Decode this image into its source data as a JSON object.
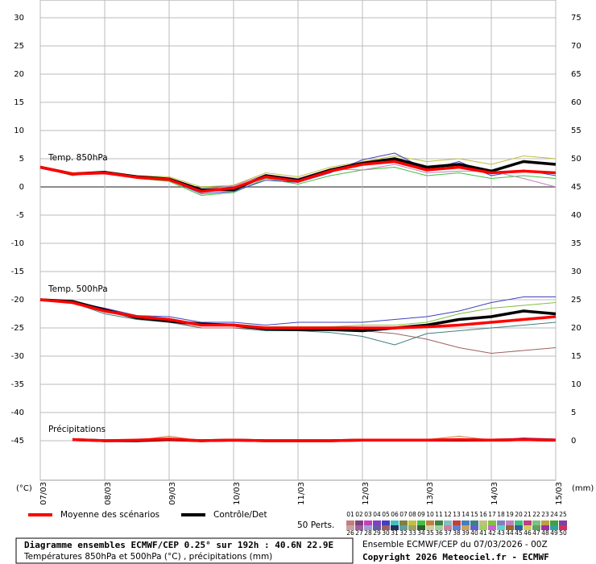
{
  "chart_data": {
    "type": "line",
    "x": [
      0,
      12,
      24,
      36,
      48,
      60,
      72,
      84,
      96,
      108,
      120,
      132,
      144,
      156,
      168,
      180,
      192
    ],
    "xlim": [
      0,
      192
    ],
    "xticks": [
      {
        "value": 0,
        "label": "07/03"
      },
      {
        "value": 24,
        "label": "08/03"
      },
      {
        "value": 48,
        "label": "09/03"
      },
      {
        "value": 72,
        "label": "10/03"
      },
      {
        "value": 96,
        "label": "11/03"
      },
      {
        "value": 120,
        "label": "12/03"
      },
      {
        "value": 144,
        "label": "13/03"
      },
      {
        "value": 168,
        "label": "14/03"
      },
      {
        "value": 192,
        "label": "15/03"
      }
    ],
    "ylim": [
      -52,
      30
    ],
    "yticks": [
      30,
      25,
      20,
      15,
      10,
      5,
      0,
      -5,
      -10,
      -15,
      -20,
      -25,
      -30,
      -35,
      -40,
      -45
    ],
    "y2lim": [
      -7,
      75
    ],
    "y2ticks": [
      75,
      70,
      65,
      60,
      55,
      50,
      45,
      40,
      35,
      30,
      25,
      20,
      15,
      10,
      5,
      0
    ],
    "y_unit": "(°C)",
    "y2_unit": "(mm)",
    "grid": true,
    "annotations": [
      "Temp. 850hPa",
      "Temp. 500hPa",
      "Précipitations"
    ],
    "legend": {
      "mean": "Moyenne des scénarios",
      "mean_color": "#ff0000",
      "control": "Contrôle/Det",
      "control_color": "#000000",
      "perts": "50 Perts."
    },
    "pert_members": [
      {
        "label": "01",
        "color": "#c08080"
      },
      {
        "label": "02",
        "color": "#804080"
      },
      {
        "label": "03",
        "color": "#c040c0"
      },
      {
        "label": "04",
        "color": "#8040c0"
      },
      {
        "label": "05",
        "color": "#4040c0"
      },
      {
        "label": "06",
        "color": "#40c0c0"
      },
      {
        "label": "07",
        "color": "#808040"
      },
      {
        "label": "08",
        "color": "#c0c040"
      },
      {
        "label": "09",
        "color": "#40c040"
      },
      {
        "label": "10",
        "color": "#c08040"
      },
      {
        "label": "11",
        "color": "#408040"
      },
      {
        "label": "12",
        "color": "#80c0c0"
      },
      {
        "label": "13",
        "color": "#c04040"
      },
      {
        "label": "14",
        "color": "#4080c0"
      },
      {
        "label": "15",
        "color": "#408080"
      },
      {
        "label": "16",
        "color": "#c0c080"
      },
      {
        "label": "17",
        "color": "#80c040"
      },
      {
        "label": "18",
        "color": "#8080c0"
      },
      {
        "label": "19",
        "color": "#c080c0"
      },
      {
        "label": "20",
        "color": "#40c080"
      },
      {
        "label": "21",
        "color": "#c04080"
      },
      {
        "label": "22",
        "color": "#80c080"
      },
      {
        "label": "23",
        "color": "#c0a040"
      },
      {
        "label": "24",
        "color": "#40a040"
      },
      {
        "label": "25",
        "color": "#8040a0"
      },
      {
        "label": "26",
        "color": "#d0a0a0"
      },
      {
        "label": "27",
        "color": "#a060a0"
      },
      {
        "label": "28",
        "color": "#a0a0d0"
      },
      {
        "label": "29",
        "color": "#6060a0"
      },
      {
        "label": "30",
        "color": "#a06060"
      },
      {
        "label": "31",
        "color": "#203060"
      },
      {
        "label": "32",
        "color": "#60a0a0"
      },
      {
        "label": "33",
        "color": "#a0a060"
      },
      {
        "label": "34",
        "color": "#306030"
      },
      {
        "label": "35",
        "color": "#d0d0a0"
      },
      {
        "label": "36",
        "color": "#a0d0a0"
      },
      {
        "label": "37",
        "color": "#d080a0"
      },
      {
        "label": "38",
        "color": "#6080d0"
      },
      {
        "label": "39",
        "color": "#d0a060"
      },
      {
        "label": "40",
        "color": "#6060d0"
      },
      {
        "label": "41",
        "color": "#a0d060"
      },
      {
        "label": "42",
        "color": "#d060d0"
      },
      {
        "label": "43",
        "color": "#60d0d0"
      },
      {
        "label": "44",
        "color": "#a06030"
      },
      {
        "label": "45",
        "color": "#3060a0"
      },
      {
        "label": "46",
        "color": "#d0d060"
      },
      {
        "label": "47",
        "color": "#60a060"
      },
      {
        "label": "48",
        "color": "#a030a0"
      },
      {
        "label": "49",
        "color": "#30a0a0"
      },
      {
        "label": "50",
        "color": "#d03060"
      }
    ],
    "series": [
      {
        "role": "pert",
        "color": "#40c040",
        "values": [
          3.5,
          2.0,
          2.8,
          1.5,
          1.0,
          -1.5,
          -1.0,
          1.5,
          0.5,
          2.0,
          3.0,
          3.5,
          2.0,
          2.5,
          1.5,
          2.0,
          1.5
        ]
      },
      {
        "role": "pert",
        "color": "#c0c040",
        "values": [
          3.5,
          2.5,
          2.6,
          2.0,
          1.8,
          0.0,
          0.3,
          2.5,
          1.8,
          3.5,
          4.5,
          5.5,
          4.5,
          5.0,
          4.0,
          5.5,
          5.0
        ]
      },
      {
        "role": "pert",
        "color": "#4040c0",
        "values": [
          3.5,
          2.2,
          2.3,
          1.6,
          1.2,
          -1.2,
          -0.8,
          1.2,
          0.8,
          2.5,
          4.8,
          6.0,
          3.0,
          4.5,
          2.0,
          3.0,
          2.0
        ]
      },
      {
        "role": "pert",
        "color": "#c080c0",
        "values": [
          3.5,
          2.4,
          2.7,
          1.9,
          1.5,
          -0.5,
          0.2,
          2.2,
          1.5,
          3.2,
          3.0,
          4.0,
          2.5,
          2.8,
          2.8,
          1.5,
          0.0
        ]
      },
      {
        "role": "control",
        "color": "#000000",
        "values": [
          3.5,
          2.3,
          2.6,
          1.8,
          1.4,
          -0.5,
          -0.5,
          2.0,
          1.2,
          3.0,
          4.2,
          5.0,
          3.5,
          4.0,
          2.8,
          4.5,
          4.0
        ]
      },
      {
        "role": "mean",
        "color": "#ff0000",
        "values": [
          3.5,
          2.3,
          2.5,
          1.7,
          1.3,
          -0.8,
          -0.2,
          1.8,
          1.0,
          2.8,
          4.0,
          4.5,
          3.0,
          3.5,
          2.5,
          2.8,
          2.5
        ]
      },
      {
        "role": "pert",
        "color": "#408080",
        "values": [
          -20,
          -20.5,
          -22.5,
          -23.5,
          -24.0,
          -25.0,
          -25.0,
          -25.5,
          -25.5,
          -25.8,
          -26.5,
          -28.0,
          -26.0,
          -25.5,
          -25.0,
          -24.5,
          -24.0
        ]
      },
      {
        "role": "pert",
        "color": "#4040c0",
        "values": [
          -20,
          -20.3,
          -21.5,
          -22.8,
          -23.0,
          -24.0,
          -24.0,
          -24.5,
          -24.0,
          -24.0,
          -24.0,
          -23.5,
          -23.0,
          -22.0,
          -20.5,
          -19.5,
          -19.5
        ]
      },
      {
        "role": "pert",
        "color": "#a06060",
        "values": [
          -20,
          -20.6,
          -22.2,
          -23.0,
          -23.8,
          -25.0,
          -25.0,
          -25.2,
          -25.5,
          -25.5,
          -25.5,
          -26.0,
          -27.0,
          -28.5,
          -29.5,
          -29.0,
          -28.5
        ]
      },
      {
        "role": "pert",
        "color": "#80c040",
        "values": [
          -20,
          -20.4,
          -21.8,
          -22.8,
          -23.3,
          -24.4,
          -24.3,
          -24.8,
          -24.8,
          -24.8,
          -24.5,
          -24.5,
          -24.0,
          -22.5,
          -21.5,
          -21.0,
          -20.5
        ]
      },
      {
        "role": "control",
        "color": "#000000",
        "values": [
          -20,
          -20.3,
          -21.8,
          -23.2,
          -23.8,
          -24.3,
          -24.5,
          -25.2,
          -25.3,
          -25.3,
          -25.5,
          -25.0,
          -24.5,
          -23.5,
          -23.0,
          -22.0,
          -22.5
        ]
      },
      {
        "role": "mean",
        "color": "#ff0000",
        "values": [
          -20,
          -20.5,
          -22.0,
          -23.0,
          -23.5,
          -24.5,
          -24.5,
          -25.0,
          -25.0,
          -25.0,
          -25.0,
          -25.0,
          -24.8,
          -24.5,
          -24.0,
          -23.5,
          -23.0
        ]
      },
      {
        "role": "pert",
        "color": "#c08040",
        "axis": "y2",
        "values": [
          null,
          0.3,
          0,
          0.1,
          0.8,
          0,
          0.2,
          0,
          0,
          0,
          0,
          0.2,
          0.2,
          0.8,
          0.1,
          0.4,
          0.2
        ]
      },
      {
        "role": "pert",
        "color": "#8040c0",
        "axis": "y2",
        "values": [
          null,
          0.4,
          0,
          0.2,
          0.4,
          0.1,
          0.1,
          0,
          0,
          0,
          0.1,
          0.1,
          0.2,
          0.3,
          0.1,
          0.5,
          0.3
        ]
      },
      {
        "role": "control",
        "color": "#000000",
        "axis": "y2",
        "values": [
          null,
          0.2,
          0,
          0,
          0.2,
          0,
          0.1,
          0,
          0,
          0,
          0.1,
          0.1,
          0.1,
          0.1,
          0.1,
          0.2,
          0.1
        ]
      },
      {
        "role": "mean",
        "color": "#ff0000",
        "axis": "y2",
        "values": [
          null,
          0.2,
          0,
          0.1,
          0.3,
          0,
          0.1,
          0,
          0,
          0,
          0.1,
          0.1,
          0.1,
          0.2,
          0.1,
          0.2,
          0.1
        ]
      }
    ],
    "footer": {
      "title": "Diagramme ensembles ECMWF/CEP 0.25° sur 192h : 40.6N 22.9E",
      "subtitle": "Températures 850hPa et 500hPa (°C) , précipitations (mm)",
      "run": "Ensemble ECMWF/CEP du 07/03/2026 - 00Z",
      "copyright": "Copyright 2026 Meteociel.fr - ECMWF"
    }
  }
}
